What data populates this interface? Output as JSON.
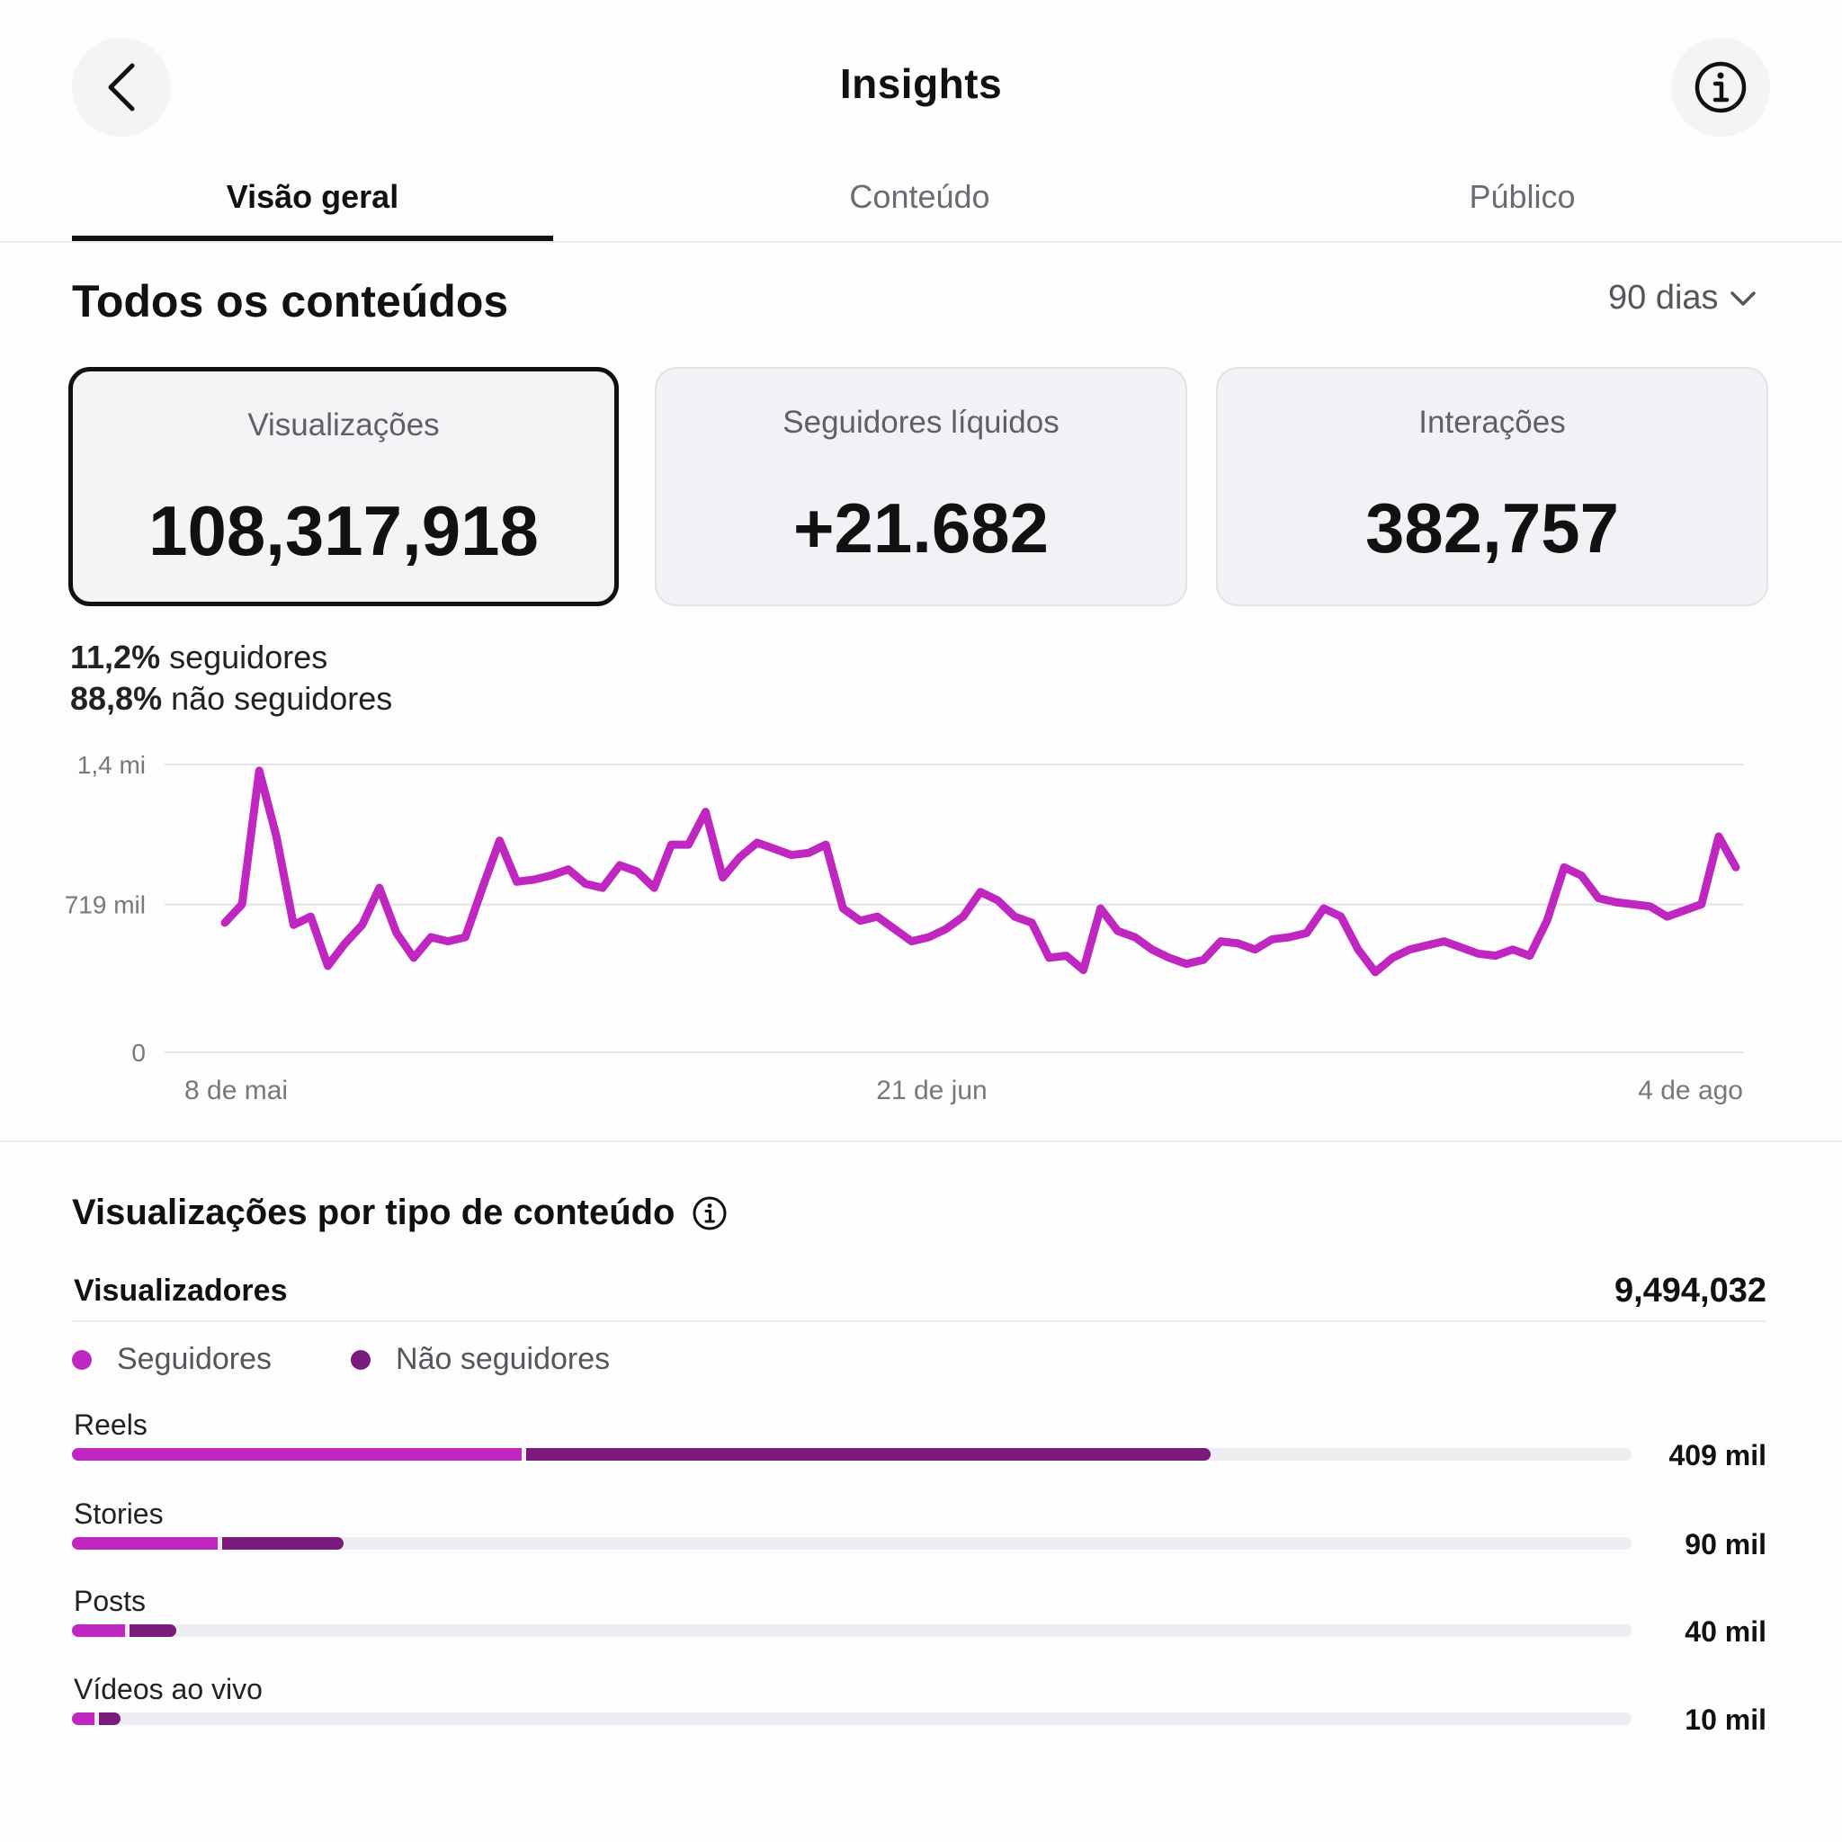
{
  "header": {
    "title": "Insights",
    "back_icon": "chevron-left-icon",
    "info_icon": "info-icon"
  },
  "tabs": [
    {
      "label": "Visão geral",
      "active": true
    },
    {
      "label": "Conteúdo",
      "active": false
    },
    {
      "label": "Público",
      "active": false
    }
  ],
  "overview": {
    "title": "Todos os conteúdos",
    "period": "90 dias",
    "cards": [
      {
        "label": "Visualizações",
        "value": "108,317,918",
        "selected": true
      },
      {
        "label": "Seguidores líquidos",
        "value": "+21.682",
        "selected": false
      },
      {
        "label": "Interações",
        "value": "382,757",
        "selected": false
      }
    ],
    "split": [
      {
        "pct": "11,2%",
        "label": "seguidores"
      },
      {
        "pct": "88,8%",
        "label": "não seguidores"
      }
    ]
  },
  "chart_data": {
    "type": "line",
    "color": "#c026c0",
    "y_ticks": [
      {
        "label": "1,4 mi",
        "value": 1400000
      },
      {
        "label": "719 mil",
        "value": 719000
      },
      {
        "label": "0",
        "value": 0
      }
    ],
    "x_ticks": [
      {
        "label": "8 de mai",
        "index": 0
      },
      {
        "label": "21 de jun",
        "index": 44
      },
      {
        "label": "4 de ago",
        "index": 88
      }
    ],
    "ylim": [
      0,
      1400000
    ],
    "values": [
      630000,
      720000,
      1370000,
      1050000,
      620000,
      660000,
      420000,
      530000,
      620000,
      800000,
      580000,
      460000,
      560000,
      540000,
      560000,
      800000,
      1030000,
      830000,
      840000,
      860000,
      890000,
      820000,
      800000,
      910000,
      880000,
      800000,
      1010000,
      1010000,
      1170000,
      850000,
      950000,
      1020000,
      990000,
      960000,
      970000,
      1010000,
      700000,
      640000,
      660000,
      600000,
      540000,
      560000,
      600000,
      660000,
      780000,
      740000,
      660000,
      630000,
      460000,
      470000,
      400000,
      700000,
      590000,
      560000,
      500000,
      460000,
      430000,
      450000,
      540000,
      530000,
      500000,
      550000,
      560000,
      580000,
      700000,
      660000,
      500000,
      390000,
      460000,
      500000,
      520000,
      540000,
      510000,
      480000,
      470000,
      500000,
      470000,
      640000,
      900000,
      860000,
      750000,
      730000,
      720000,
      710000,
      660000,
      690000,
      720000,
      1050000,
      900000
    ]
  },
  "content_types": {
    "title": "Visualizações por tipo de conteúdo",
    "title_icon": "info-icon",
    "viewers_label": "Visualizadores",
    "viewers_value": "9,494,032",
    "legend": [
      {
        "label": "Seguidores",
        "color": "#c026c0"
      },
      {
        "label": "Não seguidores",
        "color": "#7a1a7c"
      }
    ],
    "bars": [
      {
        "label": "Reels",
        "value": "409 mil",
        "followers_fraction": 0.29,
        "non_followers_fraction": 0.44
      },
      {
        "label": "Stories",
        "value": "90 mil",
        "followers_fraction": 0.095,
        "non_followers_fraction": 0.079
      },
      {
        "label": "Posts",
        "value": "40 mil",
        "followers_fraction": 0.036,
        "non_followers_fraction": 0.031
      },
      {
        "label": "Vídeos ao vivo",
        "value": "10 mil",
        "followers_fraction": 0.016,
        "non_followers_fraction": 0.015
      }
    ]
  }
}
